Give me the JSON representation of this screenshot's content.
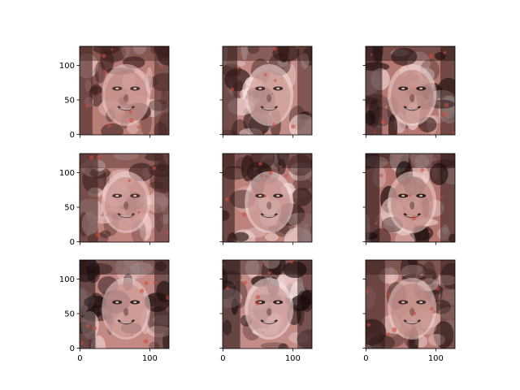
{
  "chart_data": {
    "type": "image-grid",
    "grid": {
      "rows": 3,
      "cols": 3,
      "sharex": true,
      "sharey": true
    },
    "axis": {
      "x_ticks": [
        0,
        100
      ],
      "y_ticks": [
        0,
        50,
        100
      ],
      "xlim": [
        -0.5,
        127.5
      ],
      "ylim": [
        127.5,
        -0.5
      ]
    },
    "panels": [
      {
        "row": 0,
        "col": 0,
        "content": "generated face image",
        "tint": "#b97d78",
        "shade": "#3a1e1c",
        "highlight": "#eec9c6"
      },
      {
        "row": 0,
        "col": 1,
        "content": "generated face image",
        "tint": "#c58c87",
        "shade": "#2e1715",
        "highlight": "#f6e0de"
      },
      {
        "row": 0,
        "col": 2,
        "content": "generated face image",
        "tint": "#b67873",
        "shade": "#1c0d0c",
        "highlight": "#f4dcd9"
      },
      {
        "row": 1,
        "col": 0,
        "content": "generated face image",
        "tint": "#c0847f",
        "shade": "#3c201e",
        "highlight": "#f2d3d0"
      },
      {
        "row": 1,
        "col": 1,
        "content": "generated face image",
        "tint": "#bd827d",
        "shade": "#2a1513",
        "highlight": "#f7e3e1"
      },
      {
        "row": 1,
        "col": 2,
        "content": "generated face image",
        "tint": "#b57671",
        "shade": "#160a09",
        "highlight": "#f2d7d4"
      },
      {
        "row": 2,
        "col": 0,
        "content": "generated face image",
        "tint": "#c28985",
        "shade": "#1e0f0e",
        "highlight": "#f0d2cf"
      },
      {
        "row": 2,
        "col": 1,
        "content": "generated face image",
        "tint": "#c48c88",
        "shade": "#1a0c0b",
        "highlight": "#f8e6e4"
      },
      {
        "row": 2,
        "col": 2,
        "content": "generated face image",
        "tint": "#b77c77",
        "shade": "#2d1816",
        "highlight": "#efcfcc"
      }
    ]
  }
}
